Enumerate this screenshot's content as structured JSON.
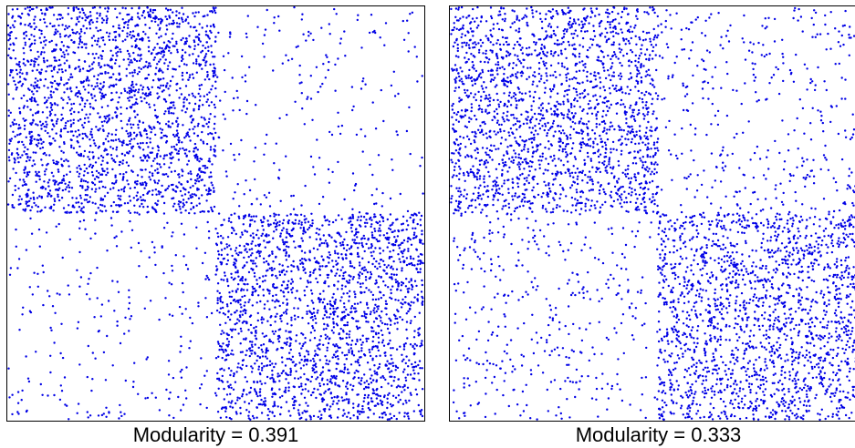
{
  "colors": {
    "point": "#0000e6",
    "frame": "#000000",
    "background": "#ffffff"
  },
  "chart_data": [
    {
      "type": "scatter",
      "subtype": "adjacency-matrix-spy-plot",
      "caption": "Modularity = 0.391",
      "modularity": 0.391,
      "xlim": [
        0,
        1
      ],
      "ylim": [
        0,
        1
      ],
      "grid": false,
      "block_boundary": 0.5,
      "density_within_block": 0.82,
      "density_between_block": 0.09,
      "seed": 11
    },
    {
      "type": "scatter",
      "subtype": "adjacency-matrix-spy-plot",
      "caption": "Modularity = 0.333",
      "modularity": 0.333,
      "xlim": [
        0,
        1
      ],
      "ylim": [
        0,
        1
      ],
      "grid": false,
      "block_boundary": 0.5,
      "density_within_block": 0.75,
      "density_between_block": 0.15,
      "seed": 29
    }
  ]
}
